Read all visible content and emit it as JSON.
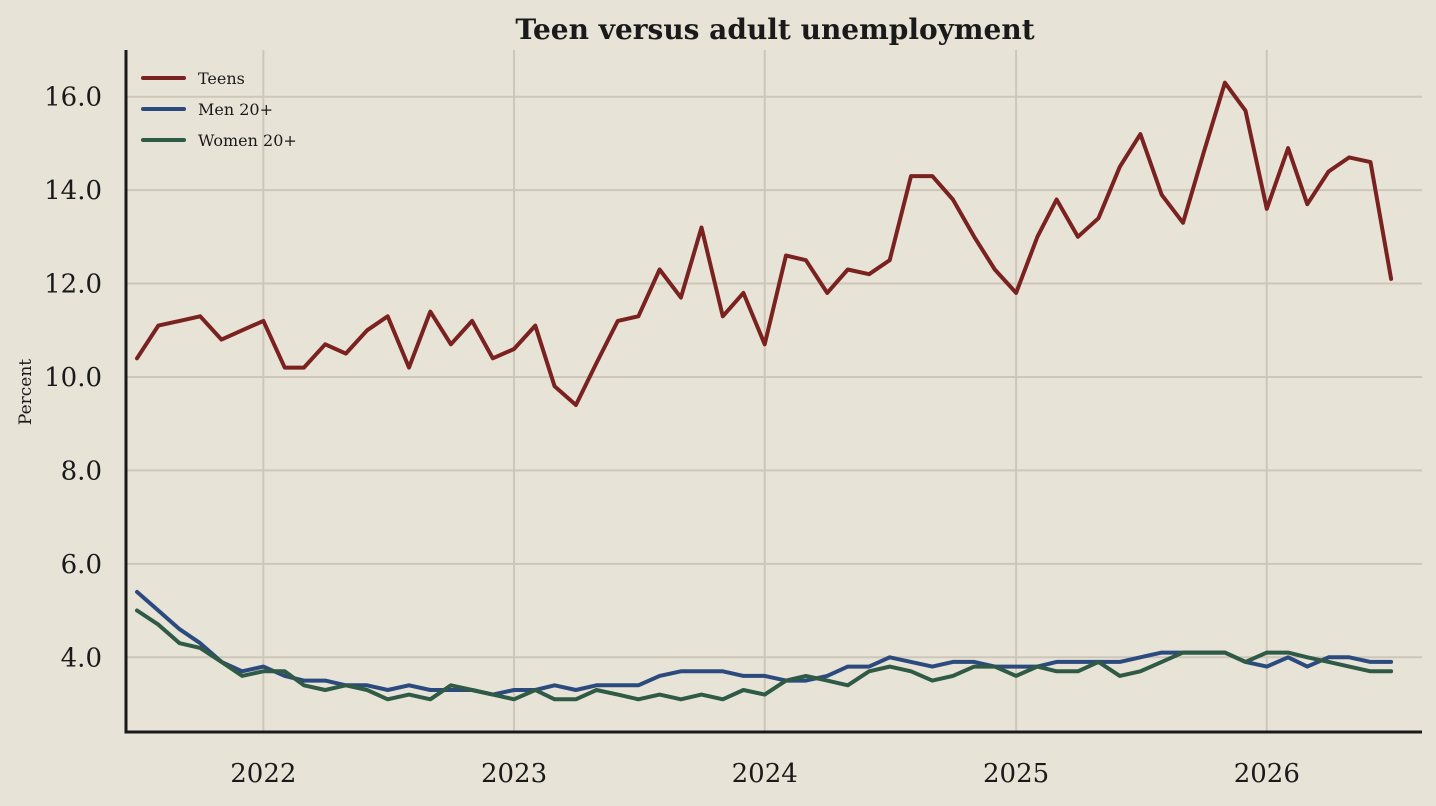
{
  "chart_data": {
    "type": "line",
    "title": "Teen versus adult unemployment",
    "xlabel": "",
    "ylabel": "Percent",
    "xlim": [
      "2021-06-15",
      "2026-08-15"
    ],
    "ylim": [
      2.4,
      17.0
    ],
    "yticks": [
      4.0,
      6.0,
      8.0,
      10.0,
      12.0,
      14.0,
      16.0
    ],
    "ytick_labels": [
      "4.0",
      "6.0",
      "8.0",
      "10.0",
      "12.0",
      "14.0",
      "16.0"
    ],
    "xticks": [
      "2022-01-01",
      "2023-01-01",
      "2024-01-01",
      "2025-01-01",
      "2026-01-01"
    ],
    "xtick_labels": [
      "2022",
      "2023",
      "2024",
      "2025",
      "2026"
    ],
    "grid": true,
    "legend_position": "top-left",
    "x": [
      "2021-07",
      "2021-08",
      "2021-09",
      "2021-10",
      "2021-11",
      "2021-12",
      "2022-01",
      "2022-02",
      "2022-03",
      "2022-04",
      "2022-05",
      "2022-06",
      "2022-07",
      "2022-08",
      "2022-09",
      "2022-10",
      "2022-11",
      "2022-12",
      "2023-01",
      "2023-02",
      "2023-03",
      "2023-04",
      "2023-05",
      "2023-06",
      "2023-07",
      "2023-08",
      "2023-09",
      "2023-10",
      "2023-11",
      "2023-12",
      "2024-01",
      "2024-02",
      "2024-03",
      "2024-04",
      "2024-05",
      "2024-06",
      "2024-07",
      "2024-08",
      "2024-09",
      "2024-10",
      "2024-11",
      "2024-12",
      "2025-01",
      "2025-02",
      "2025-03",
      "2025-04",
      "2025-05",
      "2025-06",
      "2025-07",
      "2025-08",
      "2025-09",
      "2025-10",
      "2025-11",
      "2025-12",
      "2026-01",
      "2026-02",
      "2026-03",
      "2026-04",
      "2026-05",
      "2026-06",
      "2026-07"
    ],
    "series": [
      {
        "name": "Teens",
        "color": "#7a2220",
        "values": [
          10.4,
          11.1,
          11.2,
          11.3,
          10.8,
          11.0,
          11.2,
          10.2,
          10.2,
          10.7,
          10.5,
          11.0,
          11.3,
          10.2,
          11.4,
          10.7,
          11.2,
          10.4,
          10.6,
          11.1,
          9.8,
          9.4,
          10.3,
          11.2,
          11.3,
          12.3,
          11.7,
          13.2,
          11.3,
          11.8,
          10.7,
          12.6,
          12.5,
          11.8,
          12.3,
          12.2,
          12.5,
          14.3,
          14.3,
          13.8,
          13.0,
          12.3,
          11.8,
          13.0,
          13.8,
          13.0,
          13.4,
          14.5,
          15.2,
          13.9,
          13.3,
          14.8,
          16.3,
          15.7,
          13.6,
          14.9,
          13.7,
          14.4,
          14.7,
          14.6,
          12.1
        ]
      },
      {
        "name": "Men 20+",
        "color": "#2b4a7e",
        "values": [
          5.4,
          5.0,
          4.6,
          4.3,
          3.9,
          3.7,
          3.8,
          3.6,
          3.5,
          3.5,
          3.4,
          3.4,
          3.3,
          3.4,
          3.3,
          3.3,
          3.3,
          3.2,
          3.3,
          3.3,
          3.4,
          3.3,
          3.4,
          3.4,
          3.4,
          3.6,
          3.7,
          3.7,
          3.7,
          3.6,
          3.6,
          3.5,
          3.5,
          3.6,
          3.8,
          3.8,
          4.0,
          3.9,
          3.8,
          3.9,
          3.9,
          3.8,
          3.8,
          3.8,
          3.9,
          3.9,
          3.9,
          3.9,
          4.0,
          4.1,
          4.1,
          4.1,
          4.1,
          3.9,
          3.8,
          4.0,
          3.8,
          4.0,
          4.0,
          3.9,
          3.9
        ]
      },
      {
        "name": "Women 20+",
        "color": "#2f5a45",
        "values": [
          5.0,
          4.7,
          4.3,
          4.2,
          3.9,
          3.6,
          3.7,
          3.7,
          3.4,
          3.3,
          3.4,
          3.3,
          3.1,
          3.2,
          3.1,
          3.4,
          3.3,
          3.2,
          3.1,
          3.3,
          3.1,
          3.1,
          3.3,
          3.2,
          3.1,
          3.2,
          3.1,
          3.2,
          3.1,
          3.3,
          3.2,
          3.5,
          3.6,
          3.5,
          3.4,
          3.7,
          3.8,
          3.7,
          3.5,
          3.6,
          3.8,
          3.8,
          3.6,
          3.8,
          3.7,
          3.7,
          3.9,
          3.6,
          3.7,
          3.9,
          4.1,
          4.1,
          4.1,
          3.9,
          4.1,
          4.1,
          4.0,
          3.9,
          3.8,
          3.7,
          3.7
        ]
      }
    ]
  }
}
